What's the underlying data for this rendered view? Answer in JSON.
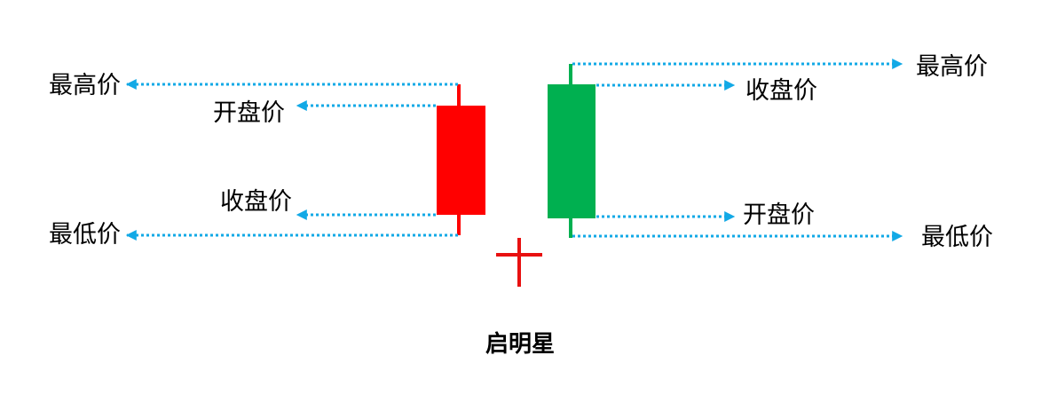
{
  "colors": {
    "bearish": "#ff0000",
    "bullish": "#00b050",
    "star": "#e81010",
    "leader": "#12a9e6",
    "text": "#000000"
  },
  "left_candle": {
    "labels": {
      "high": "最高价",
      "open": "开盘价",
      "close": "收盘价",
      "low": "最低价"
    }
  },
  "right_candle": {
    "labels": {
      "high": "最高价",
      "close": "收盘价",
      "open": "开盘价",
      "low": "最低价"
    }
  },
  "caption": "启明星"
}
